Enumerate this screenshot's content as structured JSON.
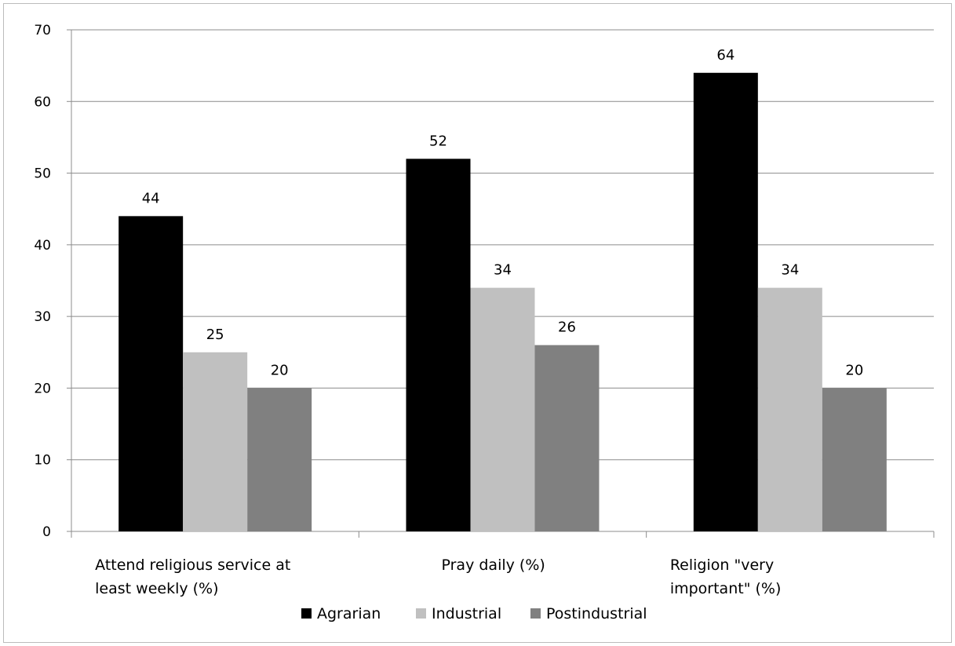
{
  "chart_data": {
    "type": "bar",
    "categories": [
      [
        "Attend religious service  at",
        "least weekly  (%)"
      ],
      [
        "Pray daily (%)"
      ],
      [
        "Religion \"very",
        "important\" (%)"
      ]
    ],
    "series": [
      {
        "name": "Agrarian",
        "color": "#000000",
        "values": [
          44,
          52,
          64
        ]
      },
      {
        "name": "Industrial",
        "color": "#c0c0c0",
        "values": [
          25,
          34,
          34
        ]
      },
      {
        "name": "Postindustrial",
        "color": "#808080",
        "values": [
          20,
          26,
          20
        ]
      }
    ],
    "ylim": [
      0,
      70
    ],
    "yticks": [
      0,
      10,
      20,
      30,
      40,
      50,
      60,
      70
    ],
    "grid": true,
    "legend": "bottom",
    "title": "",
    "xlabel": "",
    "ylabel": ""
  }
}
